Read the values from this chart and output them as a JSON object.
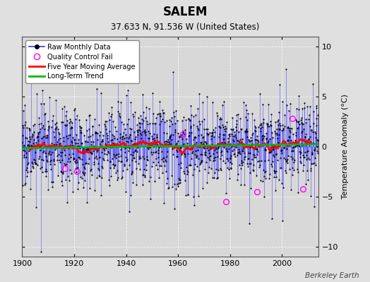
{
  "title": "SALEM",
  "subtitle": "37.633 N, 91.536 W (United States)",
  "ylabel": "Temperature Anomaly (°C)",
  "attribution": "Berkeley Earth",
  "ylim": [
    -11,
    11
  ],
  "yticks": [
    -10,
    -5,
    0,
    5,
    10
  ],
  "xlim": [
    1900,
    2014
  ],
  "xticks": [
    1900,
    1920,
    1940,
    1960,
    1980,
    2000
  ],
  "bg_color": "#e0e0e0",
  "plot_bg_color": "#d8d8d8",
  "line_color": "#3333ff",
  "dot_color": "#000000",
  "ma_color": "#ff0000",
  "trend_color": "#00bb00",
  "qc_color": "#ff00ff",
  "seed": 17,
  "n_years": 114,
  "start_year": 1900,
  "qc_positions": [
    [
      1916.5,
      -2.2
    ],
    [
      1921.0,
      -2.5
    ],
    [
      1962.0,
      1.3
    ],
    [
      1978.5,
      -5.5
    ],
    [
      1990.5,
      -4.5
    ],
    [
      2004.0,
      2.8
    ],
    [
      2008.0,
      -4.2
    ]
  ]
}
